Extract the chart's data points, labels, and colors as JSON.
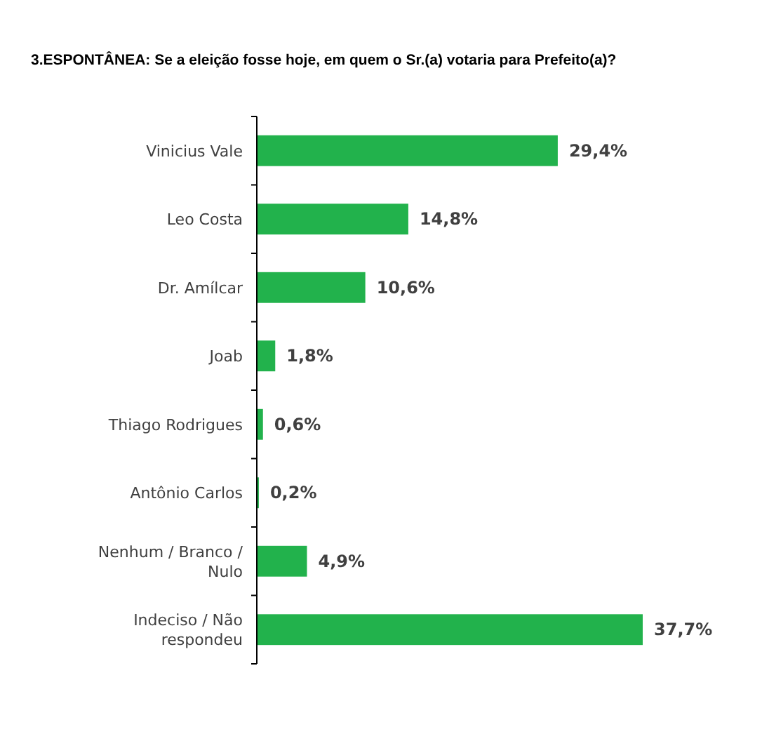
{
  "chart_data": {
    "type": "bar",
    "orientation": "horizontal",
    "title": "3.ESPONTÂNEA: Se a eleição fosse hoje, em quem o Sr.(a) votaria para Prefeito(a)?",
    "categories": [
      "Vinicius Vale",
      "Leo Costa",
      "Dr. Amílcar",
      "Joab",
      "Thiago Rodrigues",
      "Antônio Carlos",
      "Nenhum / Branco / Nulo",
      "Indeciso / Não respondeu"
    ],
    "values": [
      29.4,
      14.8,
      10.6,
      1.8,
      0.6,
      0.2,
      4.9,
      37.7
    ],
    "value_labels": [
      "29,4%",
      "14,8%",
      "10,6%",
      "1,8%",
      "0,6%",
      "0,2%",
      "4,9%",
      "37,7%"
    ],
    "color": "#22b24c"
  }
}
